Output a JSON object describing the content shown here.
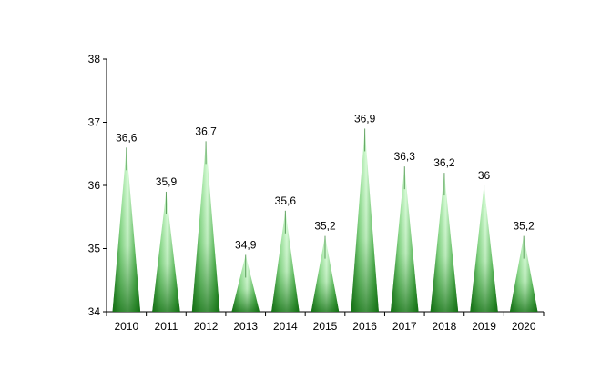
{
  "chart_data": {
    "type": "bar",
    "title": "",
    "xlabel": "",
    "ylabel": "",
    "categories": [
      "2010",
      "2011",
      "2012",
      "2013",
      "2014",
      "2015",
      "2016",
      "2017",
      "2018",
      "2019",
      "2020"
    ],
    "values": [
      36.6,
      35.9,
      36.7,
      34.9,
      35.6,
      35.2,
      36.9,
      36.3,
      36.2,
      36,
      35.2
    ],
    "data_labels": [
      "36,6",
      "35,9",
      "36,7",
      "34,9",
      "35,6",
      "35,2",
      "36,9",
      "36,3",
      "36,2",
      "36",
      "35,2"
    ],
    "ylim": [
      34,
      38
    ],
    "yticks": [
      34,
      35,
      36,
      37,
      38
    ],
    "ytick_labels": [
      "34",
      "35",
      "36",
      "37",
      "38"
    ],
    "grid": false,
    "legend": "none",
    "bar_shape": "cone",
    "colors": {
      "bar_tip": "#c8f5c8",
      "bar_mid": "#7ed37e",
      "bar_base": "#1e8a1e",
      "bar_edge": "#2a7a2a",
      "axis": "#000000"
    }
  }
}
